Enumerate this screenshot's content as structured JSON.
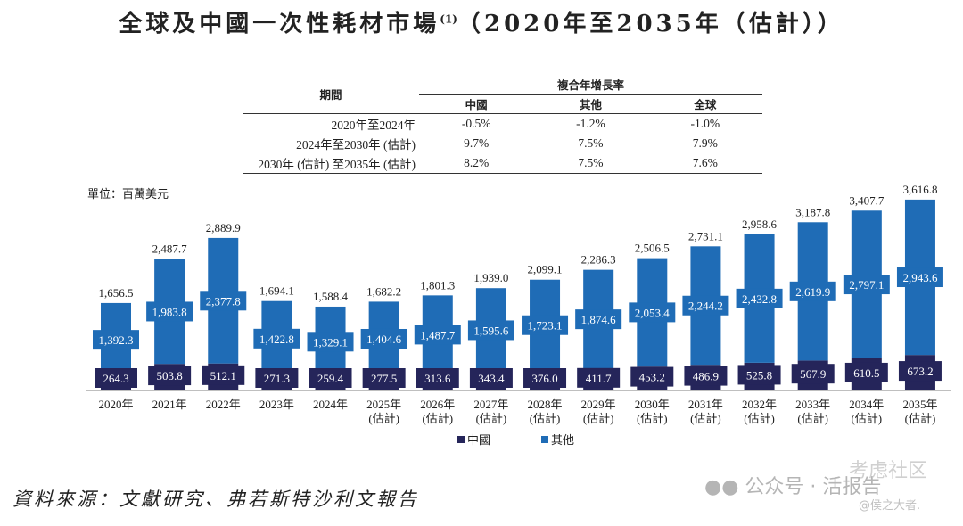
{
  "title": "全球及中國一次性耗材市場",
  "title_note": "(1)",
  "title_suffix": "（2020年至2035年（估計））",
  "table": {
    "period_header": "期間",
    "cagr_header": "複合年增長率",
    "columns": [
      "中國",
      "其他",
      "全球"
    ],
    "rows": [
      {
        "period": "2020年至2024年",
        "values": [
          "-0.5%",
          "-1.2%",
          "-1.0%"
        ]
      },
      {
        "period": "2024年至2030年 (估計)",
        "values": [
          "9.7%",
          "7.5%",
          "7.9%"
        ]
      },
      {
        "period": "2030年 (估計) 至2035年 (估計)",
        "values": [
          "8.2%",
          "7.5%",
          "7.6%"
        ]
      }
    ]
  },
  "chart_data": {
    "type": "bar",
    "stacked": true,
    "unit_label": "單位：百萬美元",
    "categories": [
      "2020年",
      "2021年",
      "2022年",
      "2023年",
      "2024年",
      "2025年\n(估計)",
      "2026年\n(估計)",
      "2027年\n(估計)",
      "2028年\n(估計)",
      "2029年\n(估計)",
      "2030年\n(估計)",
      "2031年\n(估計)",
      "2032年\n(估計)",
      "2033年\n(估計)",
      "2034年\n(估計)",
      "2035年\n(估計)"
    ],
    "series": [
      {
        "name": "中國",
        "color": "#25255a",
        "values": [
          264.3,
          503.8,
          512.1,
          271.3,
          259.4,
          277.5,
          313.6,
          343.4,
          376.0,
          411.7,
          453.2,
          486.9,
          525.8,
          567.9,
          610.5,
          673.2
        ]
      },
      {
        "name": "其他",
        "color": "#1f6cb6",
        "values": [
          1392.3,
          1983.8,
          2377.8,
          1422.8,
          1329.1,
          1404.6,
          1487.7,
          1595.6,
          1723.1,
          1874.6,
          2053.4,
          2244.2,
          2432.8,
          2619.9,
          2797.1,
          2943.6
        ]
      }
    ],
    "totals": [
      "1,656.5",
      "2,487.7",
      "2,889.9",
      "1,694.1",
      "1,588.4",
      "1,682.2",
      "1,801.3",
      "1,939.0",
      "2,099.1",
      "2,286.3",
      "2,506.5",
      "2,731.1",
      "2,958.6",
      "3,187.8",
      "3,407.7",
      "3,616.8"
    ],
    "legend_position": "bottom",
    "grid": false
  },
  "source": "資料來源：文獻研究、弗若斯特沙利文報告",
  "watermark": "公众号 · 活报告",
  "watermark2": "考虑社区",
  "watermark3": "@侯之大者."
}
